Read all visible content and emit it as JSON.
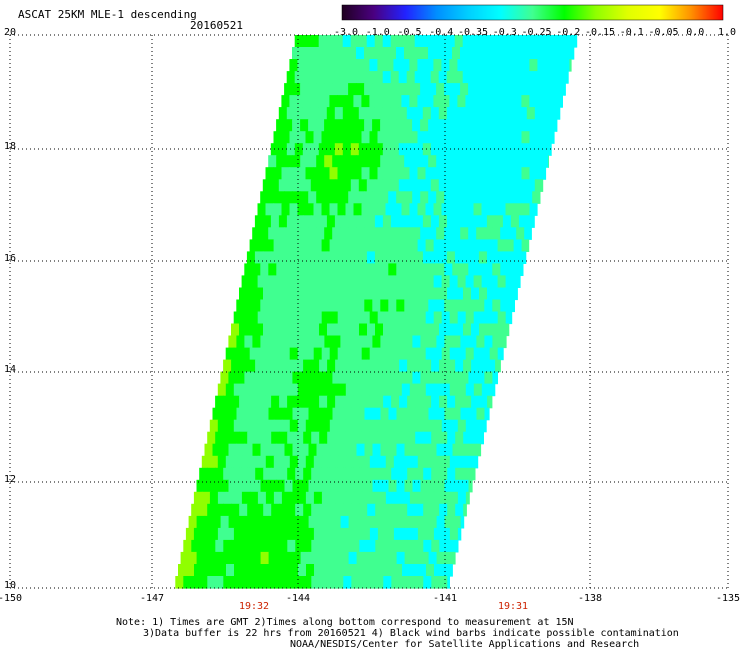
{
  "header": {
    "title": "ASCAT 25KM MLE-1 descending",
    "date": "20160521"
  },
  "colorbar": {
    "labels": [
      "-3.0",
      "-1.0",
      "-0.5",
      "-0.4",
      "-0.35",
      "-0.3",
      "-0.25",
      "-0.2",
      "-0.15",
      "-0.1",
      "-0.05",
      "0.0",
      "1.0"
    ],
    "colors": [
      "#200020",
      "#4a0080",
      "#2222ff",
      "#0090ff",
      "#00d0ff",
      "#00ffff",
      "#40ff90",
      "#00ff00",
      "#90ff00",
      "#e0ff00",
      "#ffff00",
      "#ff9000",
      "#ff0000"
    ]
  },
  "map": {
    "lat_labels": [
      "20",
      "18",
      "16",
      "14",
      "12",
      "10"
    ],
    "lon_labels": [
      "-150",
      "-147",
      "-144",
      "-141",
      "-138",
      "-135"
    ],
    "lat_range": [
      10,
      20
    ],
    "lon_range": [
      -150,
      -135
    ],
    "times": [
      {
        "label": "19:32",
        "lon": -145.1
      },
      {
        "label": "19:31",
        "lon": -139.8
      }
    ]
  },
  "notes": [
    "Note: 1) Times are GMT 2)Times along bottom correspond to measurement at 15N",
    "3)Data buffer is 22 hrs from 20160521 4) Black wind barbs indicate possible contamination",
    "NOAA/NESDIS/Center for Satellite Applications and Research"
  ]
}
